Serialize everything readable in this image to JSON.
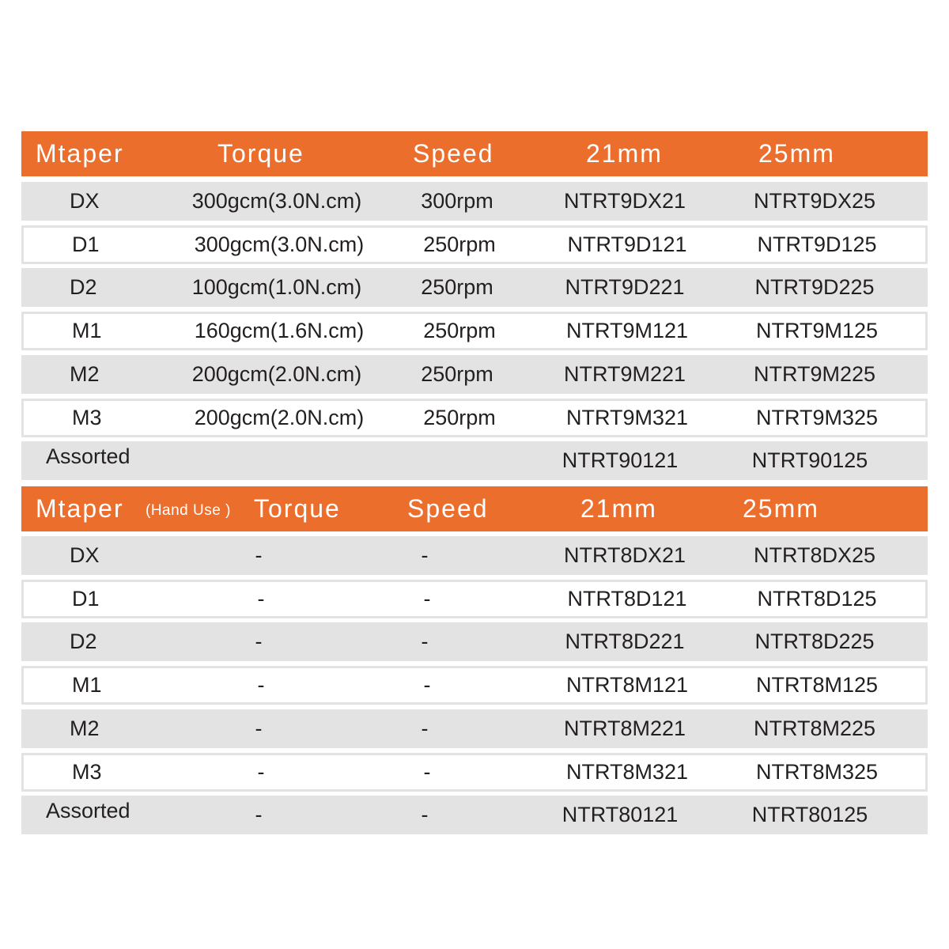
{
  "colors": {
    "header": "#ec6e2d",
    "row_shade": "#e3e3e3"
  },
  "table1": {
    "headers": {
      "model": "Mtaper",
      "torque": "Torque",
      "speed": "Speed",
      "c21": "21mm",
      "c25": "25mm"
    },
    "rows": [
      {
        "model": "DX",
        "torque": "300gcm(3.0N.cm)",
        "speed": "300rpm",
        "c21": "NTRT9DX21",
        "c25": "NTRT9DX25"
      },
      {
        "model": "D1",
        "torque": "300gcm(3.0N.cm)",
        "speed": "250rpm",
        "c21": "NTRT9D121",
        "c25": "NTRT9D125"
      },
      {
        "model": "D2",
        "torque": "100gcm(1.0N.cm)",
        "speed": "250rpm",
        "c21": "NTRT9D221",
        "c25": "NTRT9D225"
      },
      {
        "model": "M1",
        "torque": "160gcm(1.6N.cm)",
        "speed": "250rpm",
        "c21": "NTRT9M121",
        "c25": "NTRT9M125"
      },
      {
        "model": "M2",
        "torque": "200gcm(2.0N.cm)",
        "speed": "250rpm",
        "c21": "NTRT9M221",
        "c25": "NTRT9M225"
      },
      {
        "model": "M3",
        "torque": "200gcm(2.0N.cm)",
        "speed": "250rpm",
        "c21": "NTRT9M321",
        "c25": "NTRT9M325"
      },
      {
        "model": "Assorted",
        "torque": "",
        "speed": "",
        "c21": "NTRT90121",
        "c25": "NTRT90125"
      }
    ]
  },
  "table2": {
    "headers": {
      "model": "Mtaper",
      "note": "(Hand Use )",
      "torque": "Torque",
      "speed": "Speed",
      "c21": "21mm",
      "c25": "25mm"
    },
    "rows": [
      {
        "model": "DX",
        "torque": "-",
        "speed": "-",
        "c21": "NTRT8DX21",
        "c25": "NTRT8DX25"
      },
      {
        "model": "D1",
        "torque": "-",
        "speed": "-",
        "c21": "NTRT8D121",
        "c25": "NTRT8D125"
      },
      {
        "model": "D2",
        "torque": "-",
        "speed": "-",
        "c21": "NTRT8D221",
        "c25": "NTRT8D225"
      },
      {
        "model": "M1",
        "torque": "-",
        "speed": "-",
        "c21": "NTRT8M121",
        "c25": "NTRT8M125"
      },
      {
        "model": "M2",
        "torque": "-",
        "speed": "-",
        "c21": "NTRT8M221",
        "c25": "NTRT8M225"
      },
      {
        "model": "M3",
        "torque": "-",
        "speed": "-",
        "c21": "NTRT8M321",
        "c25": "NTRT8M325"
      },
      {
        "model": "Assorted",
        "torque": "-",
        "speed": "-",
        "c21": "NTRT80121",
        "c25": "NTRT80125"
      }
    ]
  }
}
